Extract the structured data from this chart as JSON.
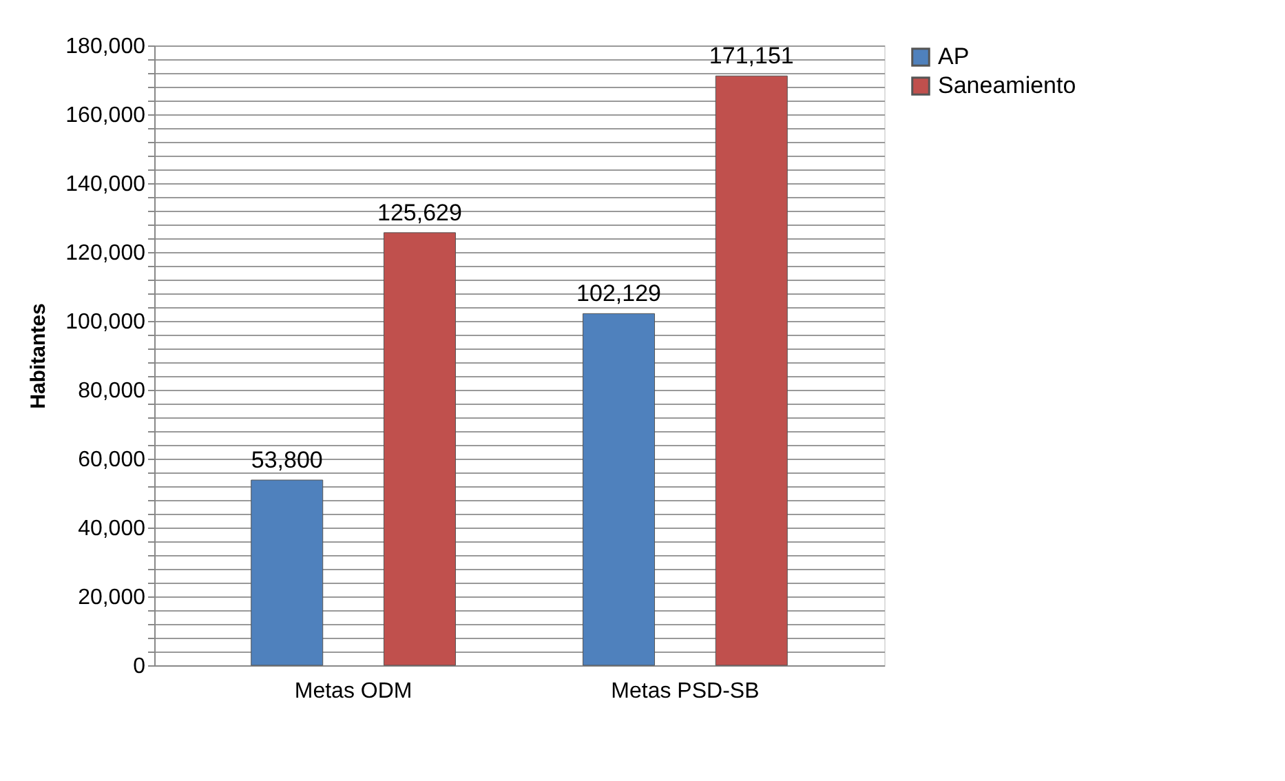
{
  "chart_data": {
    "type": "bar",
    "ylabel": "Habitantes",
    "categories": [
      "Metas ODM",
      "Metas PSD-SB"
    ],
    "series": [
      {
        "name": "AP",
        "color": "#4f81bd",
        "values": [
          53800,
          102129
        ],
        "value_labels": [
          "53,800",
          "102,129"
        ]
      },
      {
        "name": "Saneamiento",
        "color": "#c0504d",
        "values": [
          125629,
          171151
        ],
        "value_labels": [
          "125,629",
          "171,151"
        ]
      }
    ],
    "ylim": [
      0,
      180000
    ],
    "yticks": [
      0,
      {
        "value": 4000,
        "label": null
      },
      {
        "value": 8000,
        "label": null
      },
      {
        "value": 12000,
        "label": null
      },
      {
        "value": 16000,
        "label": null
      },
      {
        "value": 20000,
        "label": "20,000"
      },
      {
        "value": 24000,
        "label": null
      },
      {
        "value": 28000,
        "label": null
      },
      {
        "value": 32000,
        "label": null
      },
      {
        "value": 36000,
        "label": null
      },
      {
        "value": 40000,
        "label": "40,000"
      },
      {
        "value": 44000,
        "label": null
      },
      {
        "value": 48000,
        "label": null
      },
      {
        "value": 52000,
        "label": null
      },
      {
        "value": 56000,
        "label": null
      },
      {
        "value": 60000,
        "label": "60,000"
      },
      {
        "value": 64000,
        "label": null
      },
      {
        "value": 68000,
        "label": null
      },
      {
        "value": 72000,
        "label": null
      },
      {
        "value": 76000,
        "label": null
      },
      {
        "value": 80000,
        "label": "80,000"
      },
      {
        "value": 84000,
        "label": null
      },
      {
        "value": 88000,
        "label": null
      },
      {
        "value": 92000,
        "label": null
      },
      {
        "value": 96000,
        "label": null
      },
      {
        "value": 100000,
        "label": "100,000"
      },
      {
        "value": 104000,
        "label": null
      },
      {
        "value": 108000,
        "label": null
      },
      {
        "value": 112000,
        "label": null
      },
      {
        "value": 116000,
        "label": null
      },
      {
        "value": 120000,
        "label": "120,000"
      },
      {
        "value": 124000,
        "label": null
      },
      {
        "value": 128000,
        "label": null
      },
      {
        "value": 132000,
        "label": null
      },
      {
        "value": 136000,
        "label": null
      },
      {
        "value": 140000,
        "label": "140,000"
      },
      {
        "value": 144000,
        "label": null
      },
      {
        "value": 148000,
        "label": null
      },
      {
        "value": 152000,
        "label": null
      },
      {
        "value": 156000,
        "label": null
      },
      {
        "value": 160000,
        "label": "160,000"
      },
      {
        "value": 164000,
        "label": null
      },
      {
        "value": 168000,
        "label": null
      },
      {
        "value": 172000,
        "label": null
      },
      {
        "value": 176000,
        "label": null
      },
      {
        "value": 180000,
        "label": "180,000"
      }
    ],
    "grid": true,
    "legend": "right"
  }
}
